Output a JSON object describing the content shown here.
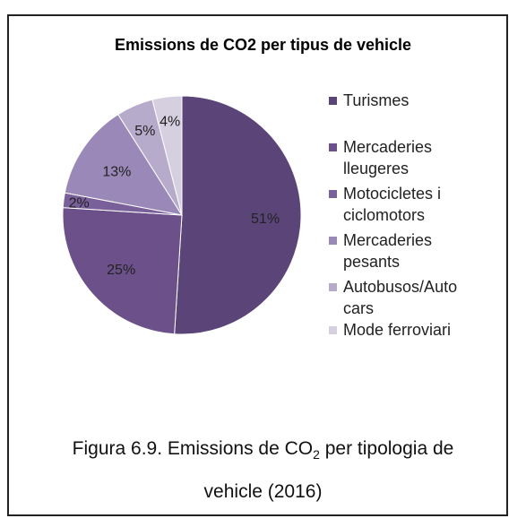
{
  "chart_data": {
    "type": "pie",
    "title": "Emissions de CO2 per tipus de vehicle",
    "legend_position": "right",
    "slices": [
      {
        "label": "Turismes",
        "value": 51,
        "display": "51%",
        "color": "#5b4478"
      },
      {
        "label": "Mercaderies lleugeres",
        "value": 25,
        "display": "25%",
        "color": "#6b5089"
      },
      {
        "label": "Motocicletes i ciclomotors",
        "value": 2,
        "display": "2%",
        "color": "#7a609b"
      },
      {
        "label": "Mercaderies pesants",
        "value": 13,
        "display": "13%",
        "color": "#9a89b8"
      },
      {
        "label": "Autobusos/Autocars",
        "value": 5,
        "display": "5%",
        "color": "#b6abcb"
      },
      {
        "label": "Mode ferroviari",
        "value": 4,
        "display": "4%",
        "color": "#d5cfe0"
      }
    ]
  },
  "legend": [
    {
      "lines": [
        "Turismes"
      ]
    },
    {
      "lines": [
        "Mercaderies",
        "lleugeres"
      ]
    },
    {
      "lines": [
        "Motocicletes i",
        "ciclomotors"
      ]
    },
    {
      "lines": [
        "Mercaderies",
        "pesants"
      ]
    },
    {
      "lines": [
        "Autobusos/Auto",
        "cars"
      ]
    },
    {
      "lines": [
        "Mode ferroviari"
      ]
    }
  ],
  "caption": {
    "line1_pre": "Figura 6.9. Emissions de CO",
    "line1_sub": "2",
    "line1_post": " per tipologia de",
    "line2": "vehicle (2016)"
  }
}
